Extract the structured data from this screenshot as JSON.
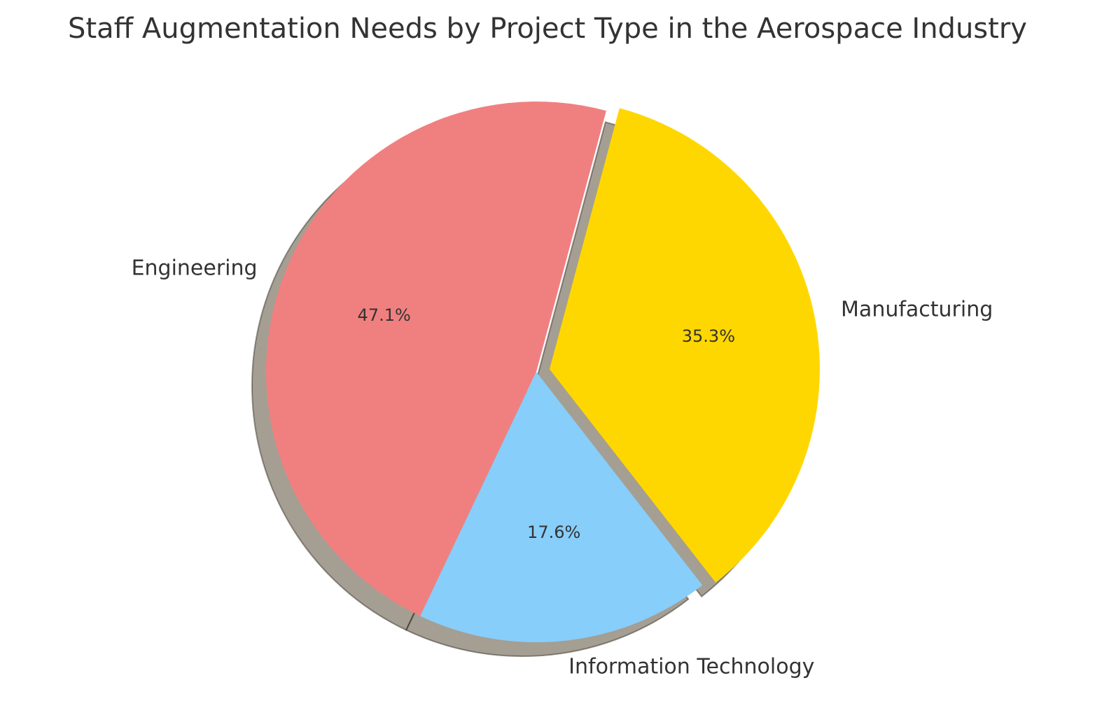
{
  "chart_data": {
    "type": "pie",
    "title": "Staff Augmentation Needs by Project Type in the Aerospace Industry",
    "slices": [
      {
        "label": "Engineering",
        "value": 47.1,
        "pct_label": "47.1%",
        "color": "#F08080",
        "exploded": false
      },
      {
        "label": "Information Technology",
        "value": 17.6,
        "pct_label": "17.6%",
        "color": "#87CEFA",
        "exploded": false
      },
      {
        "label": "Manufacturing",
        "value": 35.3,
        "pct_label": "35.3%",
        "color": "#FFD700",
        "exploded": true
      }
    ],
    "shadow": true,
    "legend": "none"
  }
}
